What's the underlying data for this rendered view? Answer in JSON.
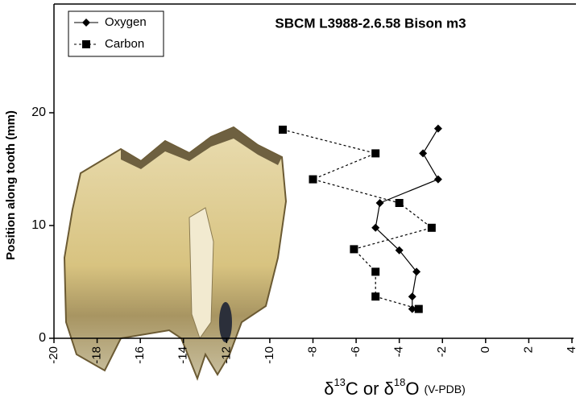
{
  "chart_data": {
    "type": "line",
    "title": "SBCM L3988-2.6.58 Bison m3",
    "x_label": [
      "δ",
      "13",
      "C or δ",
      "18",
      "O",
      "(V-PDB)"
    ],
    "y_label": "Position along tooth (mm)",
    "xlim": [
      -20,
      4
    ],
    "xticks": [
      -20,
      -18,
      -16,
      -14,
      -12,
      -10,
      -8,
      -6,
      -4,
      -2,
      0,
      2,
      4
    ],
    "ylim": [
      0,
      30
    ],
    "yticks": [
      0,
      10,
      20
    ],
    "series": [
      {
        "name": "Oxygen",
        "color": "#000000",
        "line_style": "solid",
        "marker": "diamond",
        "x": [
          -2.2,
          -2.9,
          -2.2,
          -4.9,
          -5.1,
          -4.0,
          -3.2,
          -3.4,
          -3.4
        ],
        "y": [
          18.6,
          16.4,
          14.1,
          12.0,
          9.8,
          7.8,
          5.9,
          3.7,
          2.6
        ]
      },
      {
        "name": "Carbon",
        "color": "#000000",
        "line_style": "dashed",
        "marker": "square",
        "x": [
          -9.4,
          -5.1,
          -8.0,
          -4.0,
          -2.5,
          -6.1,
          -5.1,
          -5.1,
          -3.1
        ],
        "y": [
          18.5,
          16.4,
          14.1,
          12.0,
          9.8,
          7.9,
          5.9,
          3.7,
          2.6
        ]
      }
    ],
    "legend": "upper left"
  }
}
